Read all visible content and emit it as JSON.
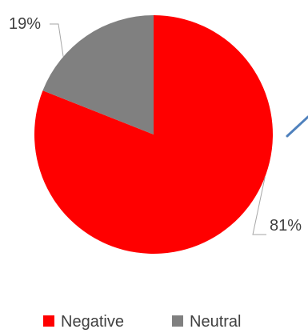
{
  "chart_data": {
    "type": "pie",
    "title": "",
    "slices": [
      {
        "name": "Negative",
        "value": 81,
        "label": "81%",
        "color": "#ff0000"
      },
      {
        "name": "Neutral",
        "value": 19,
        "label": "19%",
        "color": "#808080"
      }
    ],
    "start_angle_deg": 0,
    "direction": "clockwise",
    "legend": {
      "position": "bottom",
      "items": [
        "Negative",
        "Neutral"
      ]
    },
    "connector": {
      "color": "#4f81bd"
    }
  }
}
